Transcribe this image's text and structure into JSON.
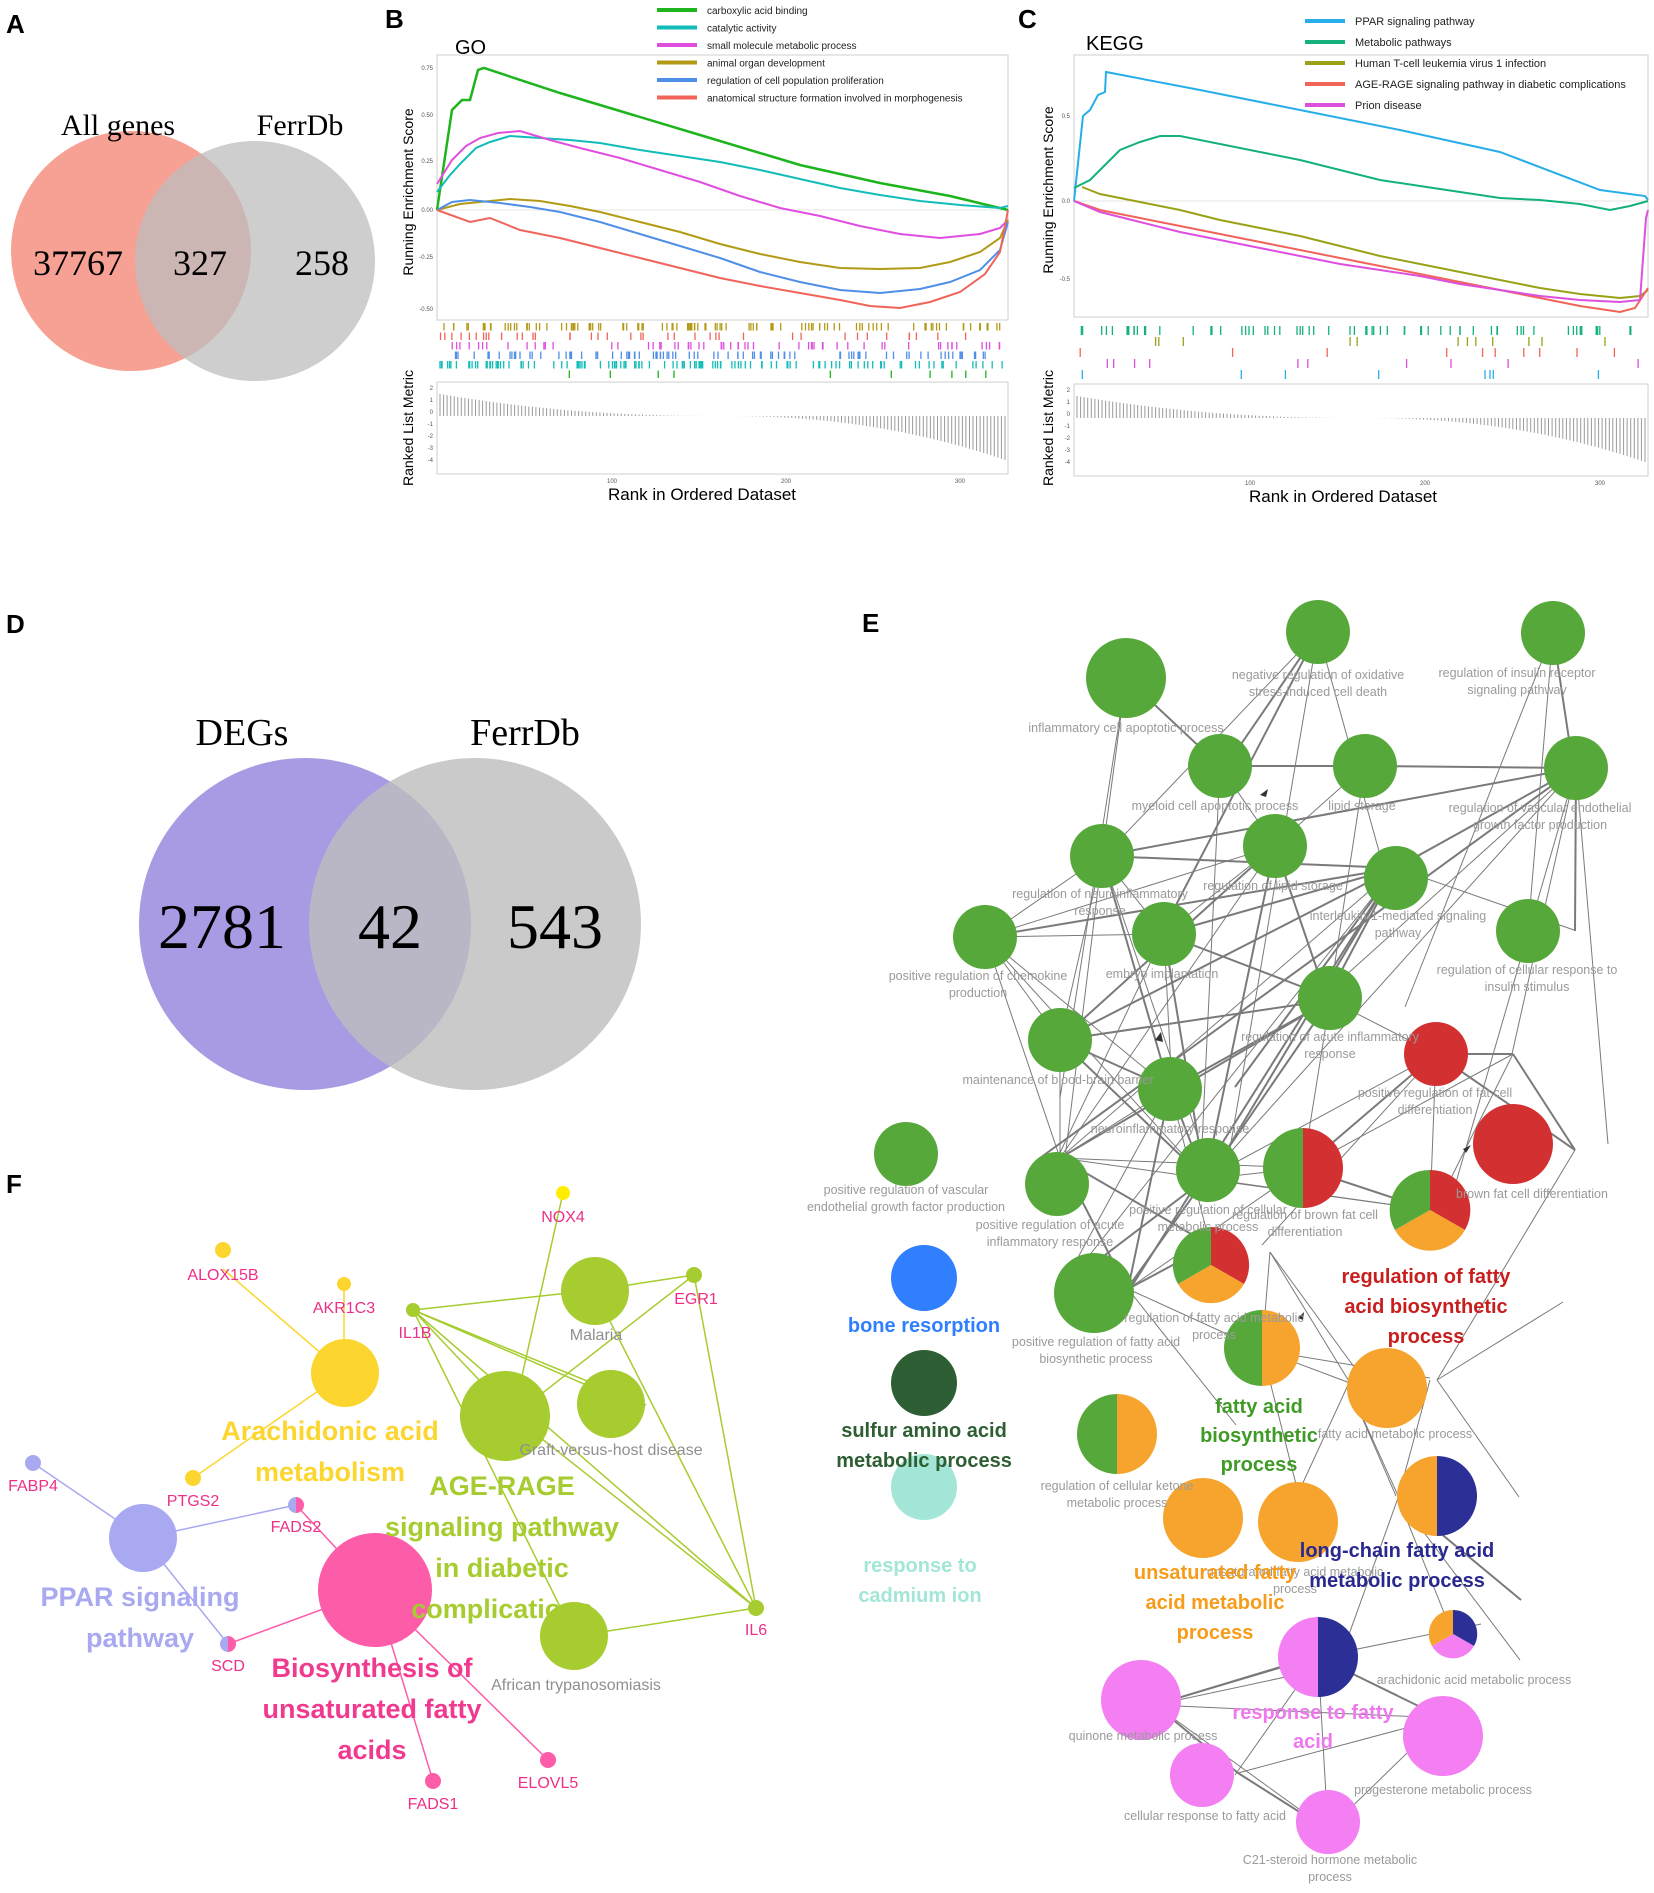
{
  "panels": {
    "a": {
      "letter": "A",
      "left_label": "All genes",
      "right_label": "FerrDb",
      "left_only": "37767",
      "overlap": "327",
      "right_only": "258",
      "left_color": "#f6a193",
      "right_color": "#bdbdbd"
    },
    "b": {
      "letter": "B",
      "title": "GO",
      "ylabel_top": "Running Enrichment Score",
      "ylabel_bottom": "Ranked List Metric",
      "xlabel": "Rank in Ordered Dataset",
      "legend": [
        {
          "label": "carboxylic acid binding",
          "color": "#1db41d"
        },
        {
          "label": "catalytic activity",
          "color": "#12bdb9"
        },
        {
          "label": "small molecule metabolic process",
          "color": "#e04ee0"
        },
        {
          "label": "animal organ development",
          "color": "#b39a16"
        },
        {
          "label": "regulation of cell population proliferation",
          "color": "#4f8fe8"
        },
        {
          "label": "anatomical structure formation involved in morphogenesis",
          "color": "#f0645a"
        }
      ],
      "yticks_top": [
        "0.75",
        "0.50",
        "0.25",
        "0.00",
        "-0.25",
        "-0.50"
      ],
      "yticks_bottom": [
        "2",
        "1",
        "0",
        "-1",
        "-2",
        "-3",
        "-4"
      ],
      "xticks": [
        "100",
        "200",
        "300"
      ]
    },
    "c": {
      "letter": "C",
      "title": "KEGG",
      "ylabel_top": "Running Enrichment Score",
      "ylabel_bottom": "Ranked List Metric",
      "xlabel": "Rank in Ordered Dataset",
      "legend": [
        {
          "label": "PPAR signaling pathway",
          "color": "#27aee8"
        },
        {
          "label": "Metabolic pathways",
          "color": "#14b27a"
        },
        {
          "label": "Human T-cell leukemia virus 1 infection",
          "color": "#9aa117"
        },
        {
          "label": "AGE-RAGE signaling pathway in diabetic complications",
          "color": "#f0645a"
        },
        {
          "label": "Prion disease",
          "color": "#dd4fdd"
        }
      ],
      "yticks_top": [
        "0.5",
        "0.0",
        "-0.5"
      ],
      "yticks_bottom": [
        "2",
        "1",
        "0",
        "-1",
        "-2",
        "-3",
        "-4"
      ],
      "xticks": [
        "100",
        "200",
        "300"
      ]
    },
    "d": {
      "letter": "D",
      "left_label": "DEGs",
      "right_label": "FerrDb",
      "left_only": "2781",
      "overlap": "42",
      "right_only": "543",
      "left_color": "#a99be3",
      "right_color": "#bdbdbd"
    },
    "e": {
      "letter": "E",
      "labels": [
        "negative regulation of oxidative",
        "stress-induced cell death",
        "regulation of insulin receptor",
        "signaling pathway",
        "inflammatory cell apoptotic process",
        "myeloid cell apoptotic process",
        "lipid storage",
        "regulation of vascular endothelial",
        "growth factor production",
        "regulation of neuroinflammatory",
        "response",
        "regulation of lipid storage",
        "interleukin-1-mediated signaling",
        "pathway",
        "positive regulation of chemokine",
        "production",
        "embryo implantation",
        "regulation of cellular response to",
        "insulin stimulus",
        "regulation of acute inflammatory",
        "response",
        "maintenance of blood-brain barrier",
        "neuroinflammatory response",
        "positive regulation of fat cell",
        "differentiation",
        "positive regulation of vascular",
        "endothelial growth factor production",
        "positive regulation of acute",
        "inflammatory response",
        "positive regulation of cellular",
        "metabolic process",
        "regulation of brown fat cell",
        "differentiation",
        "brown fat cell differentiation",
        "regulation of fatty acid metabolic",
        "process",
        "positive regulation of fatty acid",
        "biosynthetic process",
        "fatty acid metabolic process",
        "regulation of cellular ketone",
        "metabolic process",
        "unsaturated fatty acid metabolic",
        "process",
        "arachidonic acid metabolic process",
        "quinone metabolic process",
        "progesterone metabolic process",
        "cellular response to fatty acid",
        "C21-steroid hormone metabolic",
        "process"
      ],
      "clusters": {
        "regulation": [
          "regulation of fatty",
          "acid biosynthetic",
          "process"
        ],
        "fa_biosynthetic": [
          "fatty acid",
          "biosynthetic",
          "process"
        ],
        "unsaturated": [
          "unsaturated fatty",
          "acid metabolic",
          "process"
        ],
        "long_chain": [
          "long-chain fatty acid",
          "metabolic process"
        ],
        "response_fa": [
          "response to fatty",
          "acid"
        ]
      },
      "legend": [
        {
          "lines": [
            "bone resorption"
          ],
          "color": "#2f7fff"
        },
        {
          "lines": [
            "sulfur amino acid",
            "metabolic process"
          ],
          "color": "#2e5e33"
        },
        {
          "lines": [
            "response to",
            "cadmium ion"
          ],
          "color": "#a3e6d7"
        }
      ],
      "colors": {
        "green": "#57a83a",
        "red": "#d33131",
        "orange": "#f7a42e",
        "navy": "#2b2f96",
        "pink": "#f37ff3",
        "dark_green_text": "#3f9a26",
        "dark_red_text": "#c81e1e",
        "orange_text": "#f79c1a",
        "navy_text": "#29288f",
        "pink_text": "#ee79ee"
      }
    },
    "f": {
      "letter": "F",
      "genes": {
        "nox4": "NOX4",
        "alox15b": "ALOX15B",
        "akr1c3": "AKR1C3",
        "egr1": "EGR1",
        "il1b": "IL1B",
        "fabp4": "FABP4",
        "ptgs2": "PTGS2",
        "fads2": "FADS2",
        "scd": "SCD",
        "il6": "IL6",
        "elovl5": "ELOVL5",
        "fads1": "FADS1"
      },
      "terms": {
        "malaria": "Malaria",
        "gvhd": "Graft-versus-host disease",
        "african": "African trypanosomiasis"
      },
      "pathways": {
        "arachidonic": [
          "Arachidonic acid",
          "metabolism"
        ],
        "age_rage": [
          "AGE-RAGE",
          "signaling pathway",
          "in diabetic",
          "complications"
        ],
        "ppar": [
          "PPAR signaling",
          "pathway"
        ],
        "biosynthesis": [
          "Biosynthesis of",
          "unsaturated fatty",
          "acids"
        ]
      },
      "colors": {
        "yellow": "#fcd62e",
        "lime": "#a6cc2f",
        "lavender": "#a9a9f2",
        "pink": "#fd5ca9",
        "gene_text": "#ee2f88",
        "gray_text": "#8f8f8f"
      }
    }
  }
}
